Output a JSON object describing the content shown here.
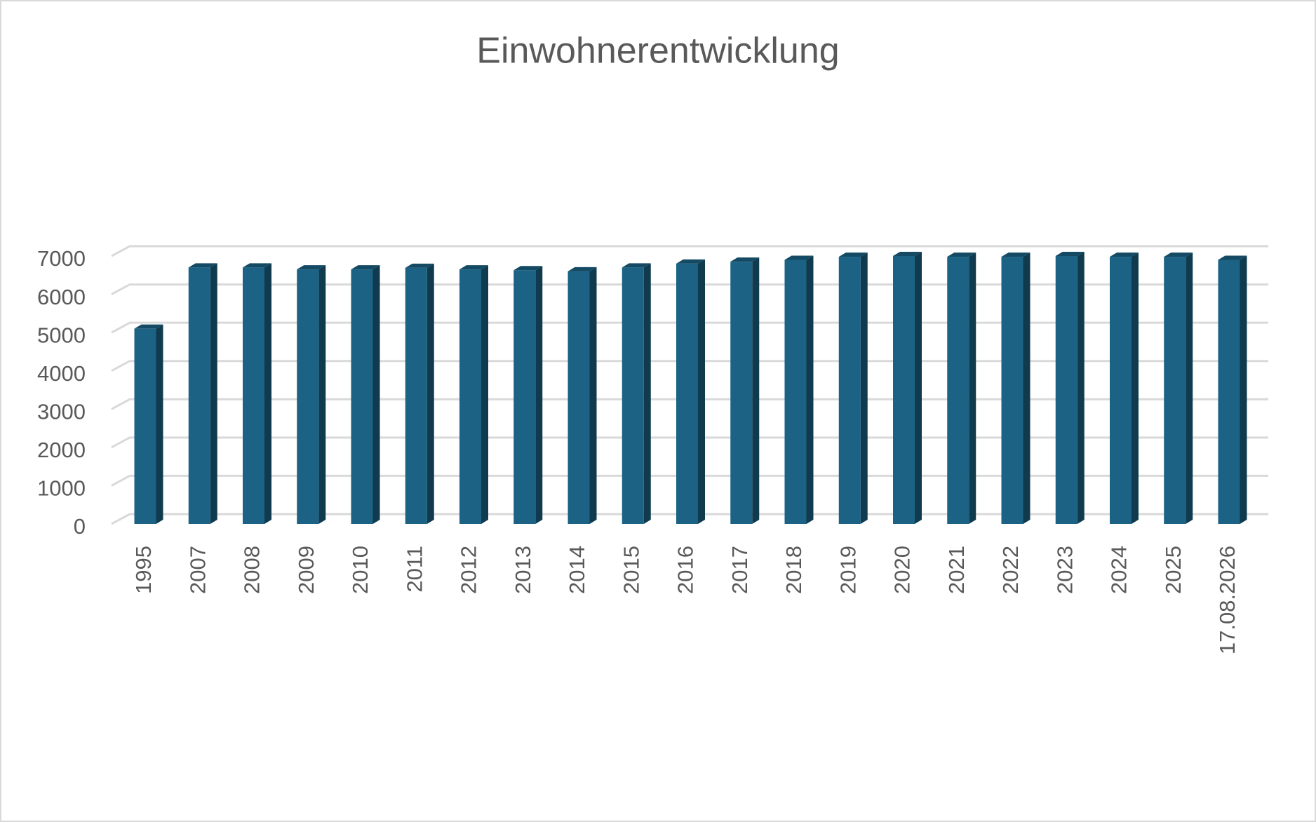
{
  "chart_data": {
    "type": "bar3d",
    "title": "Einwohnerentwicklung",
    "categories": [
      "1995",
      "2007",
      "2008",
      "2009",
      "2010",
      "2011",
      "2012",
      "2013",
      "2014",
      "2015",
      "2016",
      "2017",
      "2018",
      "2019",
      "2020",
      "2021",
      "2022",
      "2023",
      "2024",
      "2025",
      "17.08.2026"
    ],
    "values": [
      5100,
      6700,
      6700,
      6650,
      6650,
      6690,
      6650,
      6630,
      6600,
      6700,
      6800,
      6850,
      6900,
      6980,
      7000,
      6980,
      6980,
      7000,
      6980,
      6980,
      6900
    ],
    "color": "#1b6284",
    "ylim": [
      0,
      7000
    ],
    "yticks": [
      0,
      1000,
      2000,
      3000,
      4000,
      5000,
      6000,
      7000
    ],
    "grid": true
  }
}
